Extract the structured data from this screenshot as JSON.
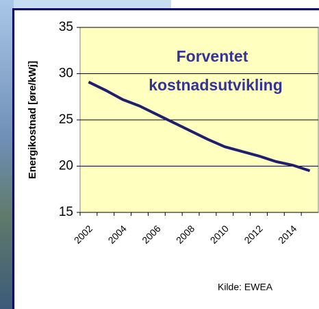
{
  "chart_data": {
    "type": "line",
    "title": [
      "Forventet",
      "kostnadsutvikling"
    ],
    "y_label": "Energikostnad [øre/kWj]",
    "source": "Kilde: EWEA",
    "categories": [
      "2002",
      null,
      "2004",
      null,
      "2006",
      null,
      "2008",
      null,
      "2010",
      null,
      "2012",
      null,
      "2014",
      null
    ],
    "series": [
      {
        "color": "#1f1f6e",
        "values": [
          29.1,
          28.2,
          27.2,
          26.5,
          25.6,
          24.7,
          23.8,
          22.9,
          22.1,
          21.6,
          21.1,
          20.5,
          20.1,
          19.5
        ]
      }
    ],
    "ylim": [
      15,
      35
    ],
    "yticks": [
      15,
      20,
      25,
      30,
      35
    ],
    "grid": true
  }
}
